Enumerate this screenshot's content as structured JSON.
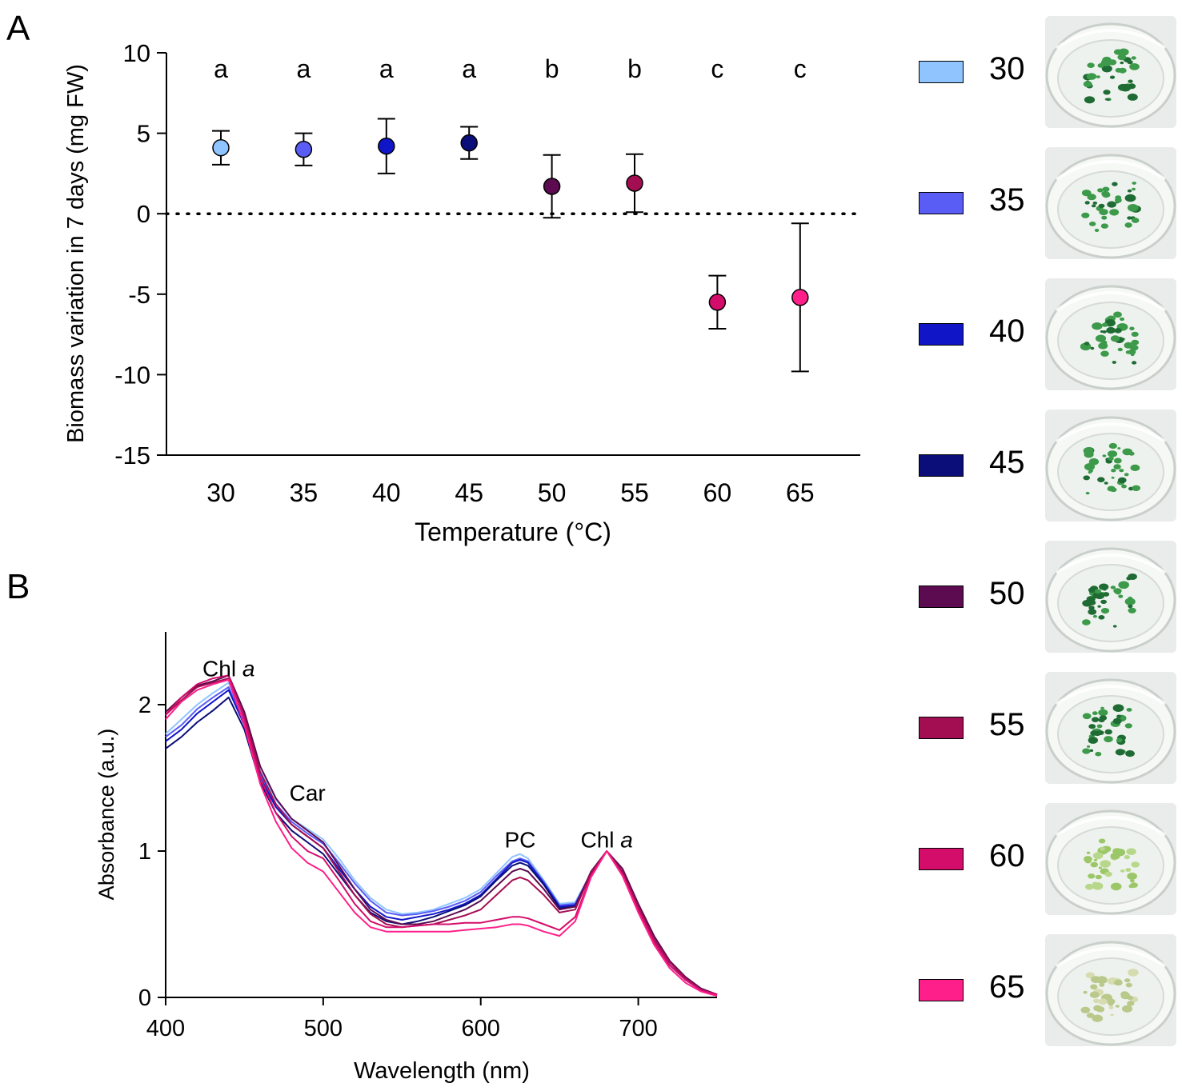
{
  "panel_labels": [
    "A",
    "B"
  ],
  "colors": {
    "30": "#90c4ff",
    "35": "#5a5cf6",
    "40": "#1016c8",
    "45": "#0b0d78",
    "50": "#5c0b50",
    "55": "#a30e52",
    "60": "#d40d6a",
    "65": "#ff1f8a"
  },
  "legend": [
    {
      "label": "30",
      "color": "#90c4ff",
      "photo": "flask-photo-green-dense"
    },
    {
      "label": "35",
      "color": "#5a5cf6",
      "photo": "flask-photo-green-dense"
    },
    {
      "label": "40",
      "color": "#1016c8",
      "photo": "flask-photo-green-dense"
    },
    {
      "label": "45",
      "color": "#0b0d78",
      "photo": "flask-photo-green-dense"
    },
    {
      "label": "50",
      "color": "#5c0b50",
      "photo": "flask-photo-green-dense"
    },
    {
      "label": "55",
      "color": "#a30e52",
      "photo": "flask-photo-green-dense"
    },
    {
      "label": "60",
      "color": "#d40d6a",
      "photo": "flask-photo-pale-green"
    },
    {
      "label": "65",
      "color": "#ff1f8a",
      "photo": "flask-photo-pale-yellow"
    }
  ],
  "chart_data": [
    {
      "type": "scatter",
      "panel": "A",
      "title": "",
      "xlabel": "Temperature (°C)",
      "ylabel": "Biomass variation in 7 days (mg FW)",
      "categories": [
        "30",
        "35",
        "40",
        "45",
        "50",
        "55",
        "60",
        "65"
      ],
      "values": [
        4.1,
        4.0,
        4.2,
        4.4,
        1.7,
        1.9,
        -5.5,
        -5.2
      ],
      "error": [
        1.05,
        1.0,
        1.7,
        1.0,
        1.95,
        1.8,
        1.65,
        4.6
      ],
      "significance": [
        "a",
        "a",
        "a",
        "a",
        "b",
        "b",
        "c",
        "c"
      ],
      "ylim": [
        -15,
        10
      ],
      "yticks": [
        "10",
        "5",
        "0",
        "-5",
        "-10",
        "-15"
      ],
      "yticks_values": [
        10,
        5,
        0,
        -5,
        -10,
        -15
      ],
      "reference_line": {
        "y": 0,
        "style": "dotted"
      }
    },
    {
      "type": "line",
      "panel": "B",
      "title": "",
      "xlabel": "Wavelength (nm)",
      "ylabel": "Absorbance (a.u.)",
      "xlim": [
        400,
        750
      ],
      "ylim": [
        0,
        2.5
      ],
      "xticks": [
        "400",
        "500",
        "600",
        "700"
      ],
      "xticks_values": [
        400,
        500,
        600,
        700
      ],
      "yticks": [
        "0",
        "1",
        "2"
      ],
      "yticks_values": [
        0,
        1,
        2
      ],
      "x": [
        400,
        410,
        420,
        430,
        440,
        450,
        460,
        470,
        480,
        490,
        500,
        510,
        520,
        530,
        540,
        550,
        560,
        570,
        580,
        590,
        600,
        610,
        620,
        625,
        630,
        640,
        650,
        660,
        670,
        680,
        690,
        700,
        710,
        720,
        730,
        740,
        750
      ],
      "series": [
        {
          "name": "30",
          "values": [
            1.8,
            1.9,
            2.0,
            2.08,
            2.15,
            1.9,
            1.55,
            1.35,
            1.22,
            1.15,
            1.08,
            0.95,
            0.8,
            0.68,
            0.6,
            0.57,
            0.58,
            0.6,
            0.64,
            0.68,
            0.74,
            0.85,
            0.96,
            0.98,
            0.95,
            0.8,
            0.64,
            0.65,
            0.85,
            1.0,
            0.85,
            0.6,
            0.38,
            0.22,
            0.12,
            0.05,
            0.02
          ]
        },
        {
          "name": "35",
          "values": [
            1.78,
            1.86,
            1.97,
            2.05,
            2.12,
            1.88,
            1.52,
            1.32,
            1.2,
            1.12,
            1.05,
            0.92,
            0.78,
            0.66,
            0.58,
            0.56,
            0.57,
            0.59,
            0.62,
            0.66,
            0.72,
            0.83,
            0.93,
            0.95,
            0.93,
            0.79,
            0.63,
            0.64,
            0.85,
            1.0,
            0.85,
            0.6,
            0.38,
            0.22,
            0.12,
            0.05,
            0.02
          ]
        },
        {
          "name": "40",
          "values": [
            1.75,
            1.83,
            1.94,
            2.02,
            2.1,
            1.86,
            1.5,
            1.3,
            1.18,
            1.1,
            1.02,
            0.88,
            0.74,
            0.62,
            0.55,
            0.53,
            0.55,
            0.57,
            0.6,
            0.64,
            0.7,
            0.81,
            0.92,
            0.94,
            0.92,
            0.78,
            0.62,
            0.63,
            0.85,
            1.0,
            0.85,
            0.6,
            0.38,
            0.22,
            0.12,
            0.05,
            0.02
          ]
        },
        {
          "name": "45",
          "values": [
            1.7,
            1.78,
            1.88,
            1.96,
            2.05,
            1.83,
            1.47,
            1.26,
            1.14,
            1.06,
            0.98,
            0.84,
            0.7,
            0.58,
            0.52,
            0.5,
            0.52,
            0.55,
            0.59,
            0.63,
            0.69,
            0.8,
            0.9,
            0.92,
            0.9,
            0.77,
            0.61,
            0.62,
            0.84,
            1.0,
            0.85,
            0.6,
            0.38,
            0.22,
            0.12,
            0.05,
            0.02
          ]
        },
        {
          "name": "50",
          "values": [
            1.95,
            2.05,
            2.13,
            2.16,
            2.2,
            1.95,
            1.58,
            1.36,
            1.22,
            1.14,
            1.06,
            0.9,
            0.74,
            0.6,
            0.53,
            0.5,
            0.5,
            0.52,
            0.56,
            0.6,
            0.66,
            0.76,
            0.86,
            0.88,
            0.86,
            0.74,
            0.6,
            0.62,
            0.86,
            1.0,
            0.88,
            0.64,
            0.42,
            0.25,
            0.14,
            0.06,
            0.02
          ]
        },
        {
          "name": "55",
          "values": [
            1.93,
            2.03,
            2.12,
            2.15,
            2.18,
            1.92,
            1.54,
            1.32,
            1.18,
            1.1,
            1.02,
            0.86,
            0.7,
            0.57,
            0.5,
            0.48,
            0.49,
            0.5,
            0.53,
            0.56,
            0.6,
            0.7,
            0.8,
            0.82,
            0.8,
            0.7,
            0.58,
            0.6,
            0.85,
            1.0,
            0.86,
            0.62,
            0.4,
            0.24,
            0.13,
            0.05,
            0.02
          ]
        },
        {
          "name": "60",
          "values": [
            1.93,
            2.05,
            2.14,
            2.18,
            2.2,
            1.9,
            1.5,
            1.26,
            1.1,
            1.0,
            0.95,
            0.8,
            0.64,
            0.52,
            0.48,
            0.48,
            0.49,
            0.5,
            0.5,
            0.51,
            0.51,
            0.53,
            0.55,
            0.55,
            0.54,
            0.5,
            0.46,
            0.55,
            0.83,
            1.0,
            0.84,
            0.6,
            0.38,
            0.22,
            0.12,
            0.05,
            0.02
          ]
        },
        {
          "name": "65",
          "values": [
            1.9,
            2.02,
            2.1,
            2.14,
            2.17,
            1.86,
            1.46,
            1.2,
            1.02,
            0.92,
            0.86,
            0.72,
            0.58,
            0.48,
            0.45,
            0.45,
            0.45,
            0.45,
            0.45,
            0.46,
            0.47,
            0.48,
            0.5,
            0.5,
            0.49,
            0.45,
            0.42,
            0.52,
            0.82,
            1.0,
            0.83,
            0.58,
            0.36,
            0.2,
            0.1,
            0.04,
            0.01
          ]
        }
      ],
      "annotations": [
        {
          "text": "Chl ",
          "italic": "a",
          "x": 440,
          "y": 2.25
        },
        {
          "text": "Car",
          "x": 490,
          "y": 1.4
        },
        {
          "text": "PC",
          "x": 625,
          "y": 1.08
        },
        {
          "text": "Chl ",
          "italic": "a",
          "x": 680,
          "y": 1.08
        }
      ]
    }
  ]
}
